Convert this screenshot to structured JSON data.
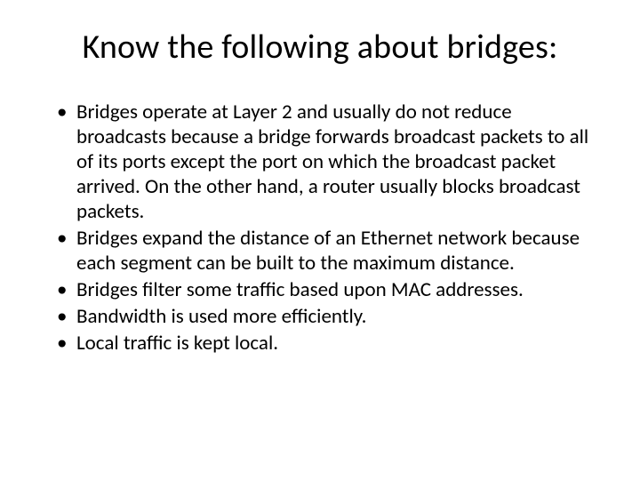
{
  "slide": {
    "title": "Know the following about bridges:",
    "title_fontsize": 38,
    "title_color": "#000000",
    "body_fontsize": 23,
    "body_color": "#000000",
    "background_color": "#ffffff",
    "bullets": [
      "Bridges operate at Layer 2 and usually do not reduce broadcasts because a bridge forwards broadcast packets to all of its ports except the port on which the broadcast packet arrived. On the other hand, a router usually blocks broadcast packets.",
      "Bridges expand the distance of an Ethernet network because each segment can be built to the maximum distance.",
      "Bridges filter some traffic based upon MAC addresses.",
      "Bandwidth is used more efficiently.",
      "Local traffic is kept local."
    ]
  }
}
